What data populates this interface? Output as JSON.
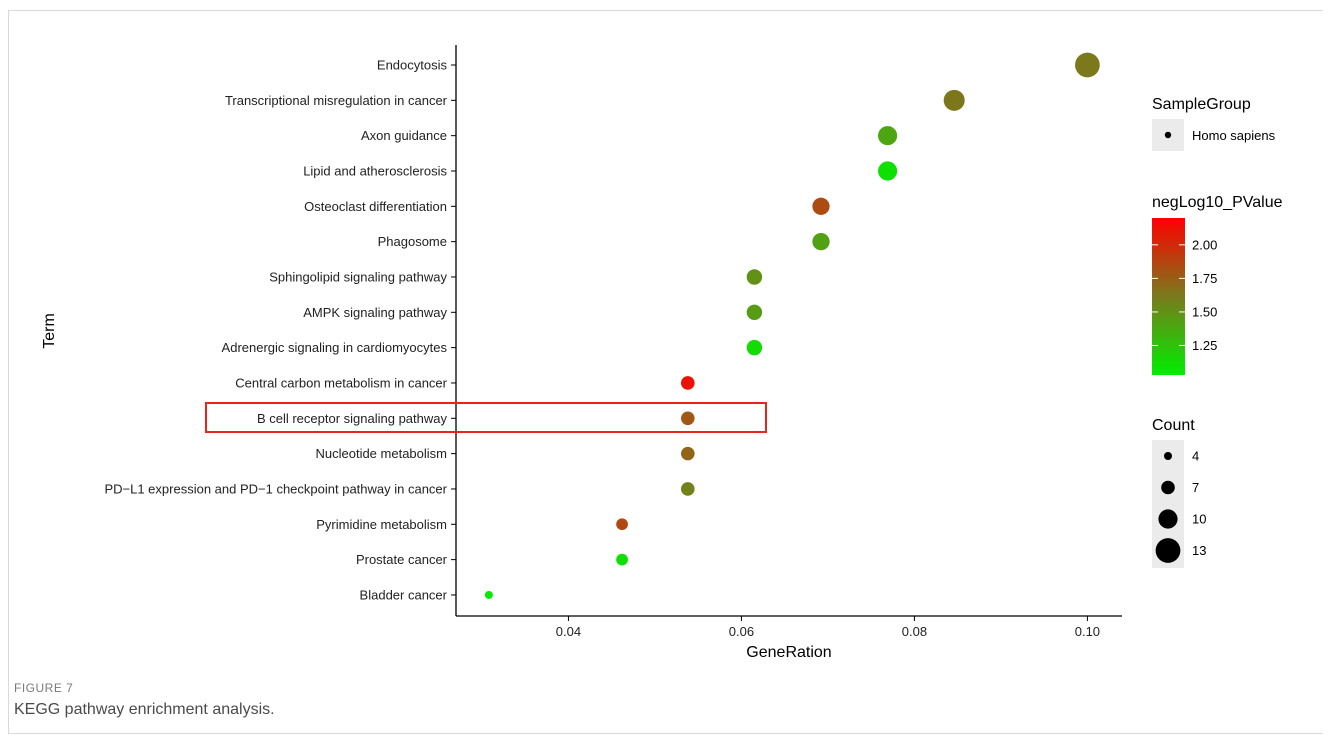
{
  "caption": {
    "label": "FIGURE 7",
    "text": "KEGG pathway enrichment analysis."
  },
  "chart_data": {
    "type": "scatter",
    "xlabel": "GeneRation",
    "ylabel": "Term",
    "xlim": [
      0.027,
      0.104
    ],
    "xticks": [
      "0.04",
      "0.06",
      "0.08",
      "0.10"
    ],
    "terms": [
      "Endocytosis",
      "Transcriptional misregulation in cancer",
      "Axon guidance",
      "Lipid and atherosclerosis",
      "Osteoclast differentiation",
      "Phagosome",
      "Sphingolipid signaling pathway",
      "AMPK signaling pathway",
      "Adrenergic signaling in cardiomyocytes",
      "Central carbon metabolism in cancer",
      "B cell receptor signaling pathway",
      "Nucleotide metabolism",
      "PD−L1 expression and PD−1 checkpoint pathway in cancer",
      "Pyrimidine metabolism",
      "Prostate cancer",
      "Bladder cancer"
    ],
    "points": [
      {
        "term": "Endocytosis",
        "x": 0.1,
        "count": 13,
        "negLog10_PValue": 1.62
      },
      {
        "term": "Transcriptional misregulation in cancer",
        "x": 0.0846,
        "count": 11,
        "negLog10_PValue": 1.63
      },
      {
        "term": "Axon guidance",
        "x": 0.0769,
        "count": 10,
        "negLog10_PValue": 1.4
      },
      {
        "term": "Lipid and atherosclerosis",
        "x": 0.0769,
        "count": 10,
        "negLog10_PValue": 1.1
      },
      {
        "term": "Osteoclast differentiation",
        "x": 0.0692,
        "count": 9,
        "negLog10_PValue": 1.83
      },
      {
        "term": "Phagosome",
        "x": 0.0692,
        "count": 9,
        "negLog10_PValue": 1.42
      },
      {
        "term": "Sphingolipid signaling pathway",
        "x": 0.0615,
        "count": 8,
        "negLog10_PValue": 1.5
      },
      {
        "term": "AMPK signaling pathway",
        "x": 0.0615,
        "count": 8,
        "negLog10_PValue": 1.45
      },
      {
        "term": "Adrenergic signaling in cardiomyocytes",
        "x": 0.0615,
        "count": 8,
        "negLog10_PValue": 1.12
      },
      {
        "term": "Central carbon metabolism in cancer",
        "x": 0.0538,
        "count": 7,
        "negLog10_PValue": 2.12
      },
      {
        "term": "B cell receptor signaling pathway",
        "x": 0.0538,
        "count": 7,
        "negLog10_PValue": 1.78
      },
      {
        "term": "Nucleotide metabolism",
        "x": 0.0538,
        "count": 7,
        "negLog10_PValue": 1.72
      },
      {
        "term": "PD−L1 expression and PD−1 checkpoint pathway in cancer",
        "x": 0.0538,
        "count": 7,
        "negLog10_PValue": 1.58
      },
      {
        "term": "Pyrimidine metabolism",
        "x": 0.0462,
        "count": 6,
        "negLog10_PValue": 1.85
      },
      {
        "term": "Prostate cancer",
        "x": 0.0462,
        "count": 6,
        "negLog10_PValue": 1.1
      },
      {
        "term": "Bladder cancer",
        "x": 0.0308,
        "count": 4,
        "negLog10_PValue": 1.05
      }
    ],
    "highlighted_term": "B cell receptor signaling pathway",
    "legend_shape": {
      "title": "SampleGroup",
      "label": "Homo sapiens"
    },
    "legend_color": {
      "title": "negLog10_PValue",
      "range": [
        1.03,
        2.2
      ],
      "ticks": [
        "2.00",
        "1.75",
        "1.50",
        "1.25"
      ],
      "colors": {
        "low": "#00ee00",
        "high": "#ff0000"
      }
    },
    "legend_size": {
      "title": "Count",
      "entries": [
        "4",
        "7",
        "10",
        "13"
      ]
    },
    "grid": false,
    "legend_position": "right"
  }
}
